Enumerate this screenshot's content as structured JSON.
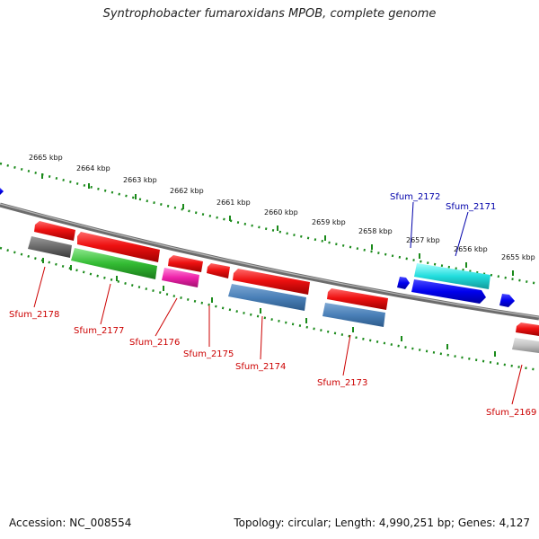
{
  "title": "Syntrophobacter fumaroxidans MPOB, complete genome",
  "footer": {
    "accession": "Accession: NC_008554",
    "summary": "Topology: circular; Length: 4,990,251 bp; Genes: 4,127"
  },
  "colors": {
    "backbone": "#7a7a7a",
    "tick": "#1a8a1a",
    "label_red": "#cc0000",
    "label_blue": "#0000aa"
  },
  "scale_labels": [
    "2665 kbp",
    "2664 kbp",
    "2663 kbp",
    "2662 kbp",
    "2661 kbp",
    "2660 kbp",
    "2659 kbp",
    "2658 kbp",
    "2657 kbp",
    "2656 kbp",
    "2655 kbp"
  ],
  "genes": [
    {
      "id": "Sfum_2178",
      "color": "#cc0000"
    },
    {
      "id": "Sfum_2177",
      "color": "#cc0000"
    },
    {
      "id": "Sfum_2176",
      "color": "#cc0000"
    },
    {
      "id": "Sfum_2175",
      "color": "#cc0000"
    },
    {
      "id": "Sfum_2174",
      "color": "#cc0000"
    },
    {
      "id": "Sfum_2173",
      "color": "#cc0000"
    },
    {
      "id": "Sfum_2172",
      "color": "#0000aa"
    },
    {
      "id": "Sfum_2171",
      "color": "#0000aa"
    },
    {
      "id": "Sfum_2169",
      "color": "#cc0000"
    }
  ]
}
